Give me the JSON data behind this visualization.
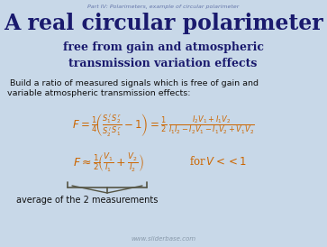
{
  "background_color": "#c8d8e8",
  "header_text": "Part IV: Polarimeters, example of circular polarimeter",
  "header_color": "#6677aa",
  "title_line1": "A real circular polarimeter",
  "title_color": "#1a1a6e",
  "subtitle": "free from gain and atmospheric\ntransmission variation effects",
  "subtitle_color": "#1a1a6e",
  "bullet_text": " Build a ratio of measured signals which is free of gain and\nvariable atmospheric transmission effects:",
  "bullet_color": "#111111",
  "eq_color": "#cc6600",
  "avg_text": "average of the 2 measurements",
  "avg_color": "#111111",
  "footer_text": "www.sliderbase.com",
  "footer_color": "#8899aa",
  "brace_color": "#555544",
  "figwidth": 3.63,
  "figheight": 2.74,
  "dpi": 100
}
